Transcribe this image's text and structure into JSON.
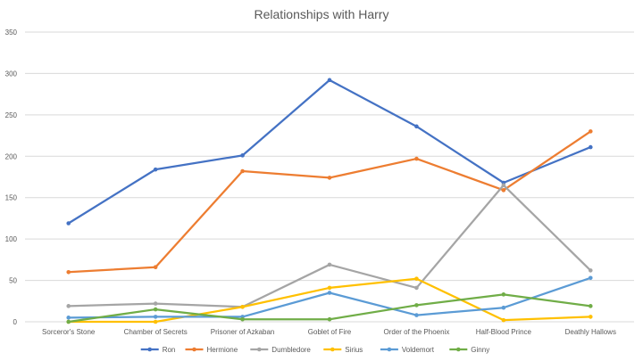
{
  "chart_data": {
    "type": "line",
    "title": "Relationships with Harry",
    "xlabel": "",
    "ylabel": "",
    "ylim": [
      0,
      350
    ],
    "yticks": [
      0,
      50,
      100,
      150,
      200,
      250,
      300,
      350
    ],
    "grid": true,
    "legend_position": "bottom",
    "categories": [
      "Sorceror's Stone",
      "Chamber of Secrets",
      "Prisoner of Azkaban",
      "Goblet of Fire",
      "Order of the Phoenix",
      "Half-Blood Prince",
      "Deathly Hallows"
    ],
    "series": [
      {
        "name": "Ron",
        "color": "#4472c4",
        "values": [
          119,
          184,
          201,
          292,
          236,
          168,
          211
        ]
      },
      {
        "name": "Hermione",
        "color": "#ed7d31",
        "values": [
          60,
          66,
          182,
          174,
          197,
          159,
          230
        ]
      },
      {
        "name": "Dumbledore",
        "color": "#a5a5a5",
        "values": [
          19,
          22,
          18,
          69,
          41,
          165,
          62
        ]
      },
      {
        "name": "Sirius",
        "color": "#ffc000",
        "values": [
          0,
          0,
          18,
          41,
          52,
          2,
          6
        ]
      },
      {
        "name": "Voldemort",
        "color": "#5b9bd5",
        "values": [
          5,
          6,
          6,
          35,
          8,
          17,
          53
        ]
      },
      {
        "name": "Ginny",
        "color": "#70ad47",
        "values": [
          0,
          15,
          3,
          3,
          20,
          33,
          19
        ]
      }
    ]
  }
}
